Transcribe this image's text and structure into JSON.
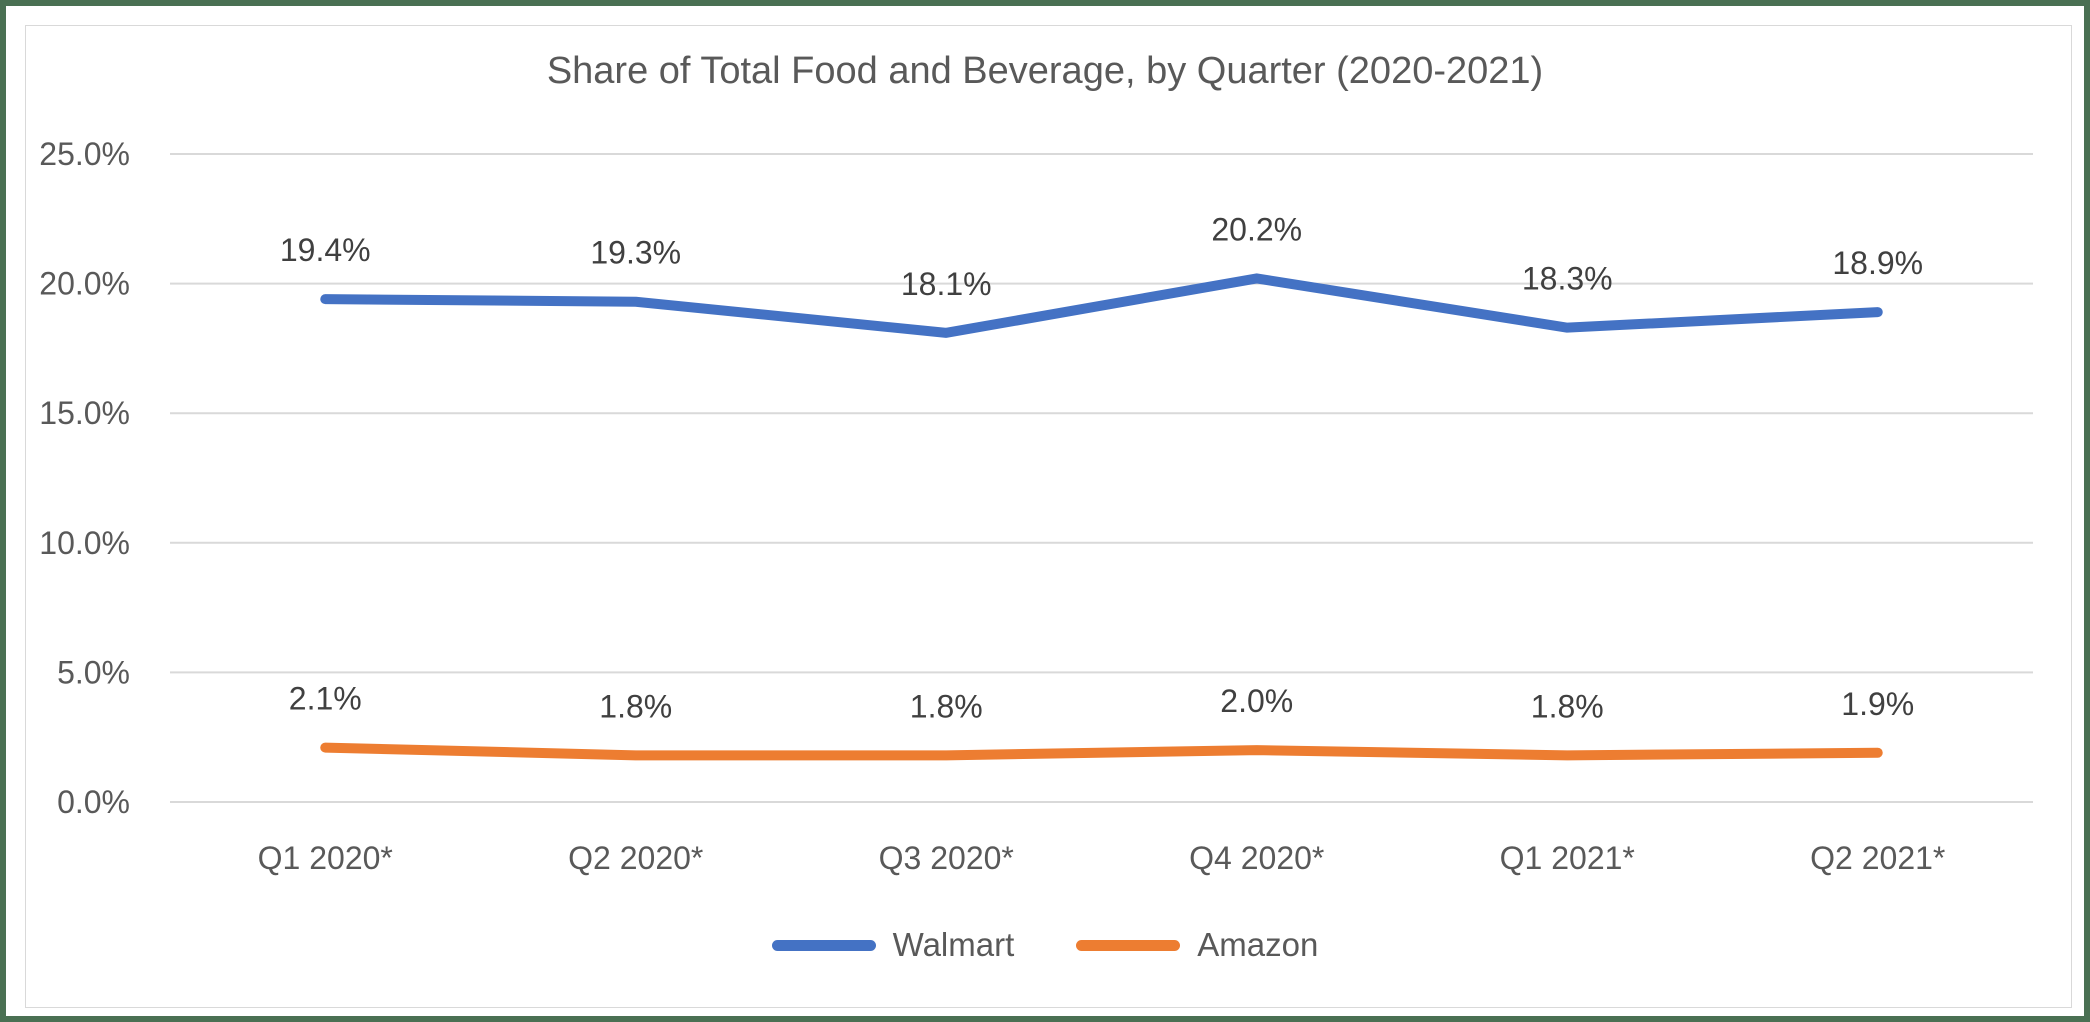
{
  "chart_data": {
    "type": "line",
    "title": "Share of Total Food and Beverage, by Quarter (2020-2021)",
    "categories": [
      "Q1 2020*",
      "Q2 2020*",
      "Q3 2020*",
      "Q4 2020*",
      "Q1 2021*",
      "Q2 2021*"
    ],
    "series": [
      {
        "name": "Walmart",
        "color": "#4472C4",
        "values": [
          19.4,
          19.3,
          18.1,
          20.2,
          18.3,
          18.9
        ],
        "labels": [
          "19.4%",
          "19.3%",
          "18.1%",
          "20.2%",
          "18.3%",
          "18.9%"
        ]
      },
      {
        "name": "Amazon",
        "color": "#ED7D31",
        "values": [
          2.1,
          1.8,
          1.8,
          2.0,
          1.8,
          1.9
        ],
        "labels": [
          "2.1%",
          "1.8%",
          "1.8%",
          "2.0%",
          "1.8%",
          "1.9%"
        ]
      }
    ],
    "xlabel": "",
    "ylabel": "",
    "ylim": [
      0,
      25
    ],
    "yticks": [
      {
        "value": 0,
        "label": "0.0%"
      },
      {
        "value": 5,
        "label": "5.0%"
      },
      {
        "value": 10,
        "label": "10.0%"
      },
      {
        "value": 15,
        "label": "15.0%"
      },
      {
        "value": 20,
        "label": "20.0%"
      },
      {
        "value": 25,
        "label": "25.0%"
      }
    ],
    "grid": "horizontal",
    "legend_position": "bottom",
    "colors": {
      "gridline": "#D9D9D9",
      "axis_text": "#595959",
      "data_label": "#404040",
      "title": "#595959",
      "outer_border": "#4A7053",
      "frame_border": "#D9D9D9",
      "background": "#FFFFFF"
    }
  }
}
